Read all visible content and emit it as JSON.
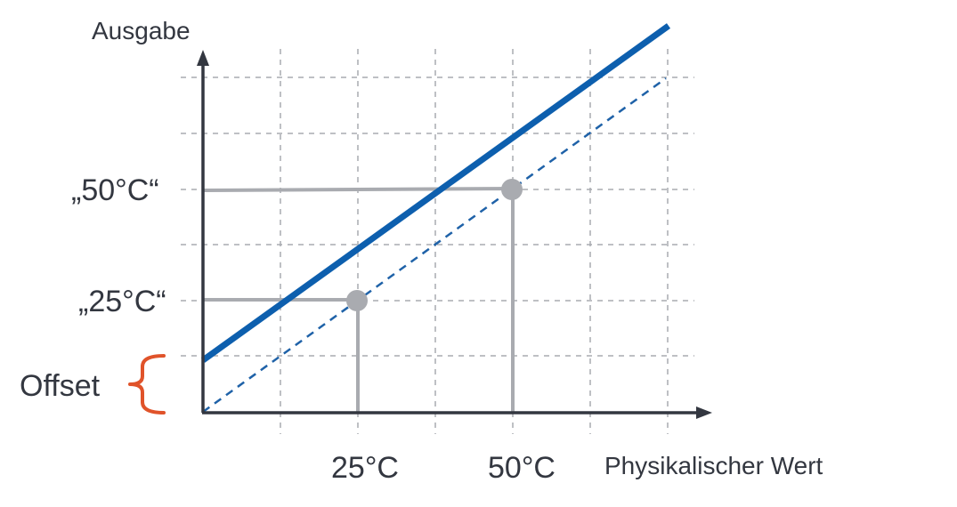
{
  "diagram": {
    "y_axis_label": "Ausgabe",
    "x_axis_label": "Physikalischer Wert",
    "x_ticks": [
      {
        "label": "25°C",
        "value": 25
      },
      {
        "label": "50°C",
        "value": 50
      }
    ],
    "y_ticks": [
      {
        "label": "„25°C“",
        "value": 25
      },
      {
        "label": "„50°C“",
        "value": 50
      }
    ],
    "offset_label": "Offset",
    "ideal_line": {
      "style": "dashed",
      "color": "#1f62a8",
      "from": [
        0,
        0
      ],
      "to": [
        75,
        75
      ]
    },
    "actual_line": {
      "style": "solid",
      "color": "#0d5fae",
      "from": [
        0,
        8.4
      ],
      "to": [
        75,
        92
      ]
    },
    "points": [
      {
        "x": 25,
        "y": 25
      },
      {
        "x": 50,
        "y": 50
      }
    ],
    "colors": {
      "axis": "#333740",
      "grid": "#a9abb0",
      "guide": "#a9abb0",
      "offset_brace": "#e0532a",
      "point": "#a9abb0"
    }
  }
}
